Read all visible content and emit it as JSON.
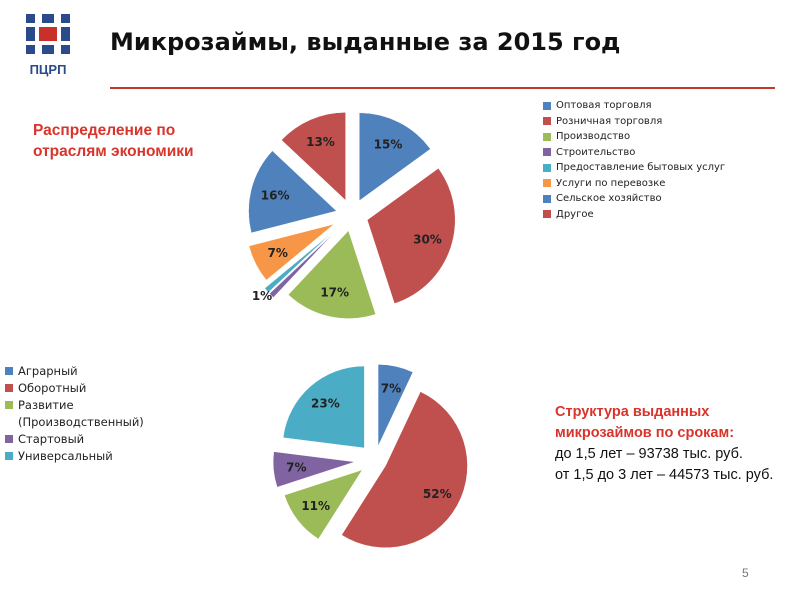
{
  "header": {
    "title": "Микрозаймы, выданные  за 2015 год",
    "logo_text": "ПЦРП"
  },
  "subtitle_sectors": "Распределение по отраслям экономики",
  "terms_info": {
    "heading": "Структура выданных микрозаймов по срокам:",
    "line1": "до 1,5 лет – 93738 тыс. руб.",
    "line2": "от 1,5 до 3 лет – 44573 тыс. руб."
  },
  "page_number": "5",
  "colors": {
    "accent_red": "#d9342b",
    "rule": "#c0392b",
    "logo_blue": "#2a4a8c",
    "logo_red": "#c8302a"
  },
  "chart_data": [
    {
      "type": "pie",
      "categories": [
        "Оптовая торговля",
        "Розничная торговля",
        "Производство",
        "Строительство",
        "Предоставление бытовых услуг",
        "Услуги по перевозке",
        "Сельское хозяйство",
        "Другое"
      ],
      "values": [
        15,
        30,
        17,
        1,
        1,
        7,
        16,
        13
      ],
      "labels": [
        "15%",
        "30%",
        "17%",
        "",
        "1%",
        "7%",
        "16%",
        "13%"
      ],
      "colors": [
        "#4f81bd",
        "#c0504d",
        "#9bbb59",
        "#8064a2",
        "#4bacc6",
        "#f79646",
        "#4f81bd",
        "#c0504d"
      ],
      "exploded": true,
      "legend_position": "right"
    },
    {
      "type": "pie",
      "categories": [
        "Аграрный",
        "Оборотный",
        "Развитие (Производственный)",
        "Стартовый",
        "Универсальный"
      ],
      "values": [
        7,
        52,
        11,
        7,
        23
      ],
      "labels": [
        "7%",
        "52%",
        "11%",
        "7%",
        "23%"
      ],
      "colors": [
        "#4f81bd",
        "#c0504d",
        "#9bbb59",
        "#8064a2",
        "#4bacc6"
      ],
      "exploded": true,
      "legend_position": "left"
    }
  ]
}
